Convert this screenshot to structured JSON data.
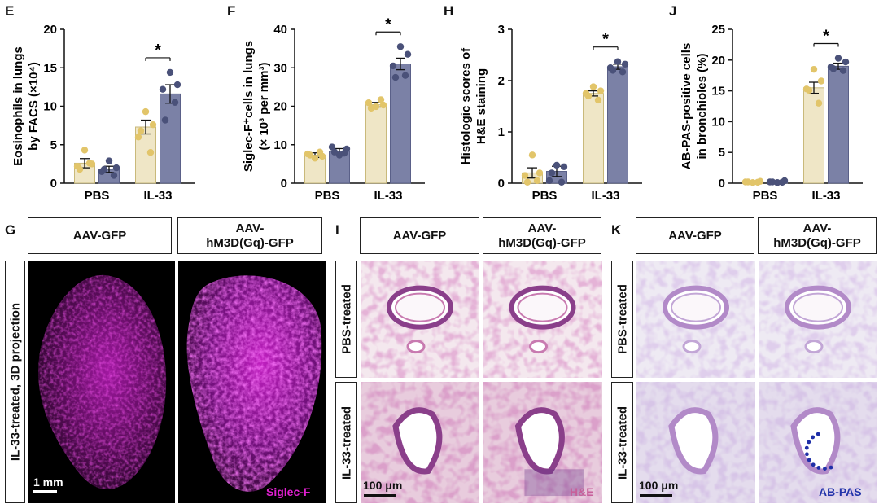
{
  "panel_labels": {
    "E": "E",
    "F": "F",
    "H": "H",
    "J": "J",
    "G": "G",
    "I": "I",
    "K": "K"
  },
  "colors": {
    "pbs": "#efe6c6",
    "pbs_dot": "#e2c56a",
    "il33": "#7b81a6",
    "il33_dot": "#4a5179",
    "magenta": "#e020d0",
    "he": "#c8609a",
    "abpas": "#2233aa"
  },
  "chart_data": [
    {
      "type": "bar",
      "panel": "E",
      "categories": [
        "PBS",
        "IL-33"
      ],
      "ylabel_lines": [
        "Eosinophils in lungs",
        "by FACS (×10⁴)"
      ],
      "ylim": [
        0,
        20
      ],
      "yticks": [
        0,
        5,
        10,
        15,
        20
      ],
      "series": [
        {
          "values": [
            2.6,
            7.3
          ],
          "errors": [
            0.6,
            0.9
          ]
        },
        {
          "values": [
            1.8,
            11.6
          ],
          "errors": [
            0.4,
            1.2
          ]
        }
      ],
      "points": [
        [
          [
            4.3,
            2.5,
            2.2,
            2.6,
            1.8
          ],
          [
            9.3,
            7.6,
            6.0,
            4.0,
            6.8
          ]
        ],
        [
          [
            2.9,
            2.0,
            1.5,
            1.0,
            1.8
          ],
          [
            14.4,
            12.8,
            12.2,
            10.5,
            8.2
          ]
        ]
      ],
      "significance": "*"
    },
    {
      "type": "bar",
      "panel": "F",
      "categories": [
        "PBS",
        "IL-33"
      ],
      "ylabel_lines": [
        "Siglec-F⁺cells in lungs",
        "(× 10³ per mm³)"
      ],
      "ylim": [
        0,
        40
      ],
      "yticks": [
        0,
        10,
        20,
        30,
        40
      ],
      "series": [
        {
          "values": [
            7.3,
            20.4
          ],
          "errors": [
            0.6,
            0.6
          ]
        },
        {
          "values": [
            8.3,
            31.0
          ],
          "errors": [
            0.7,
            1.5
          ]
        }
      ],
      "points": [
        [
          [
            6.5,
            7.0,
            7.6,
            8.1,
            7.3
          ],
          [
            19.9,
            20.3,
            20.9,
            21.7,
            19.5
          ]
        ],
        [
          [
            7.3,
            8.9,
            9.4,
            7.8,
            8.1
          ],
          [
            35.5,
            33.5,
            30.5,
            28.0,
            27.5
          ]
        ]
      ],
      "significance": "*"
    },
    {
      "type": "bar",
      "panel": "H",
      "categories": [
        "PBS",
        "IL-33"
      ],
      "ylabel_lines": [
        "Histologic scores of",
        "H&E staining"
      ],
      "ylim": [
        0,
        3
      ],
      "yticks": [
        0,
        1,
        2,
        3
      ],
      "series": [
        {
          "values": [
            0.2,
            1.75
          ],
          "errors": [
            0.1,
            0.05
          ]
        },
        {
          "values": [
            0.23,
            2.27
          ],
          "errors": [
            0.1,
            0.05
          ]
        }
      ],
      "points": [
        [
          [
            0.55,
            0.2,
            0.15,
            0.05,
            0.02
          ],
          [
            1.88,
            1.8,
            1.75,
            1.62,
            1.7
          ]
        ],
        [
          [
            0.35,
            0.32,
            0.05,
            0.02,
            0.2
          ],
          [
            2.37,
            2.32,
            2.25,
            2.17,
            2.2
          ]
        ]
      ],
      "significance": "*"
    },
    {
      "type": "bar",
      "panel": "J",
      "categories": [
        "PBS",
        "IL-33"
      ],
      "ylabel_lines": [
        "AB-PAS-positive cells",
        "in bronchioles (%)"
      ],
      "ylim": [
        0,
        25
      ],
      "yticks": [
        0,
        5,
        10,
        15,
        20,
        25
      ],
      "series": [
        {
          "values": [
            0.2,
            15.5
          ],
          "errors": [
            0.05,
            0.9
          ]
        },
        {
          "values": [
            0.2,
            19.0
          ],
          "errors": [
            0.05,
            0.5
          ]
        }
      ],
      "points": [
        [
          [
            0.1,
            0.3,
            0.2,
            0.15,
            0.2
          ],
          [
            18.5,
            16.6,
            15.3,
            13.0,
            15.1
          ]
        ],
        [
          [
            0.1,
            0.4,
            0.2,
            0.15,
            0.2
          ],
          [
            20.3,
            19.7,
            18.9,
            18.3,
            18.6
          ]
        ]
      ],
      "significance": "*"
    }
  ],
  "panelG": {
    "col1": "AAV-GFP",
    "col2_line1": "AAV-",
    "col2_line2": "hM3D(Gq)-GFP",
    "row": "IL-33-treated, 3D projection",
    "scale": "1 mm",
    "stain": "Siglec-F"
  },
  "panelI": {
    "col1": "AAV-GFP",
    "col2_line1": "AAV-",
    "col2_line2": "hM3D(Gq)-GFP",
    "row1": "PBS-treated",
    "row2": "IL-33-treated",
    "scale": "100 μm",
    "stain": "H&E"
  },
  "panelK": {
    "col1": "AAV-GFP",
    "col2_line1": "AAV-",
    "col2_line2": "hM3D(Gq)-GFP",
    "row1": "PBS-treated",
    "row2": "IL-33-treated",
    "scale": "100 μm",
    "stain": "AB-PAS"
  }
}
